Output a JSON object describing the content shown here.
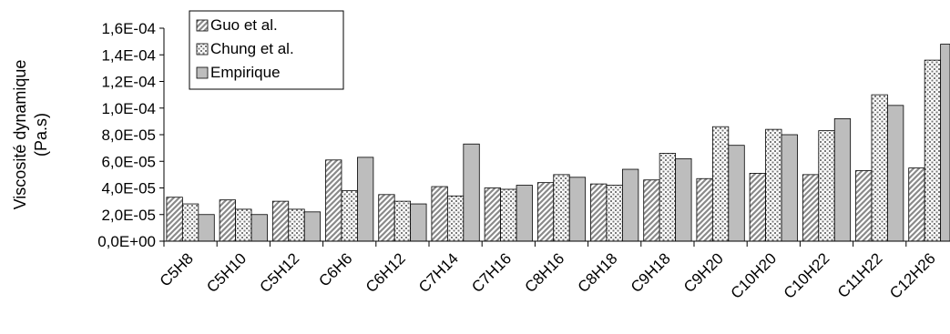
{
  "chart_data": {
    "type": "bar",
    "title": "",
    "xlabel": "",
    "ylabel": [
      "Viscosité dynamique",
      "(Pa.s)"
    ],
    "ylim": [
      0,
      0.00016
    ],
    "yticks": [
      "0,0E+00",
      "2,0E-05",
      "4,0E-05",
      "6,0E-05",
      "8,0E-05",
      "1,0E-04",
      "1,2E-04",
      "1,4E-04",
      "1,6E-04"
    ],
    "categories": [
      "C5H8",
      "C5H10",
      "C5H12",
      "C6H6",
      "C6H12",
      "C7H14",
      "C7H16",
      "C8H16",
      "C8H18",
      "C9H18",
      "C9H20",
      "C10H20",
      "C10H22",
      "C11H22",
      "C12H26"
    ],
    "series": [
      {
        "name": "Guo et al.",
        "pattern": "diagonal-hatch",
        "values": [
          3.3e-05,
          3.1e-05,
          3e-05,
          6.1e-05,
          3.5e-05,
          4.1e-05,
          4e-05,
          4.4e-05,
          4.3e-05,
          4.6e-05,
          4.7e-05,
          5.1e-05,
          5e-05,
          5.3e-05,
          5.5e-05
        ]
      },
      {
        "name": "Chung et al.",
        "pattern": "dotted",
        "values": [
          2.8e-05,
          2.4e-05,
          2.4e-05,
          3.8e-05,
          3e-05,
          3.4e-05,
          3.9e-05,
          5e-05,
          4.2e-05,
          6.6e-05,
          8.6e-05,
          8.4e-05,
          8.3e-05,
          0.00011,
          0.000136
        ]
      },
      {
        "name": "Empirique",
        "pattern": "solid-gray",
        "values": [
          2e-05,
          2e-05,
          2.2e-05,
          6.3e-05,
          2.8e-05,
          7.3e-05,
          4.2e-05,
          4.8e-05,
          5.4e-05,
          6.2e-05,
          7.2e-05,
          8e-05,
          9.2e-05,
          0.000102,
          0.000148
        ]
      }
    ],
    "grid": false,
    "legend_position": "top-left"
  }
}
